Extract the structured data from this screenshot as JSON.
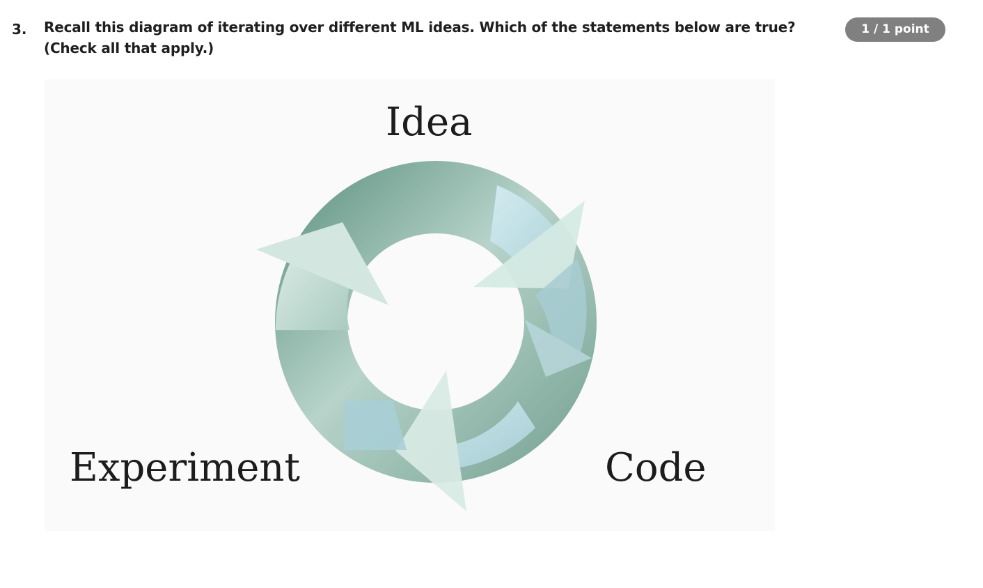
{
  "question": {
    "number": "3.",
    "line1": "Recall this diagram of iterating over different ML ideas. Which of the statements below are true?",
    "line2": "(Check all that apply.)"
  },
  "score": {
    "label": "1 / 1 point"
  },
  "diagram": {
    "nodes": {
      "top": "Idea",
      "bottom_left": "Experiment",
      "bottom_right": "Code"
    },
    "colors": {
      "ring_dark": "#7fa99b",
      "ring_light": "#c4dcd4",
      "arrow_light_blue": "#c9e6ee",
      "arrow_pale": "#d9ebe5",
      "background": "#fafafa"
    }
  }
}
